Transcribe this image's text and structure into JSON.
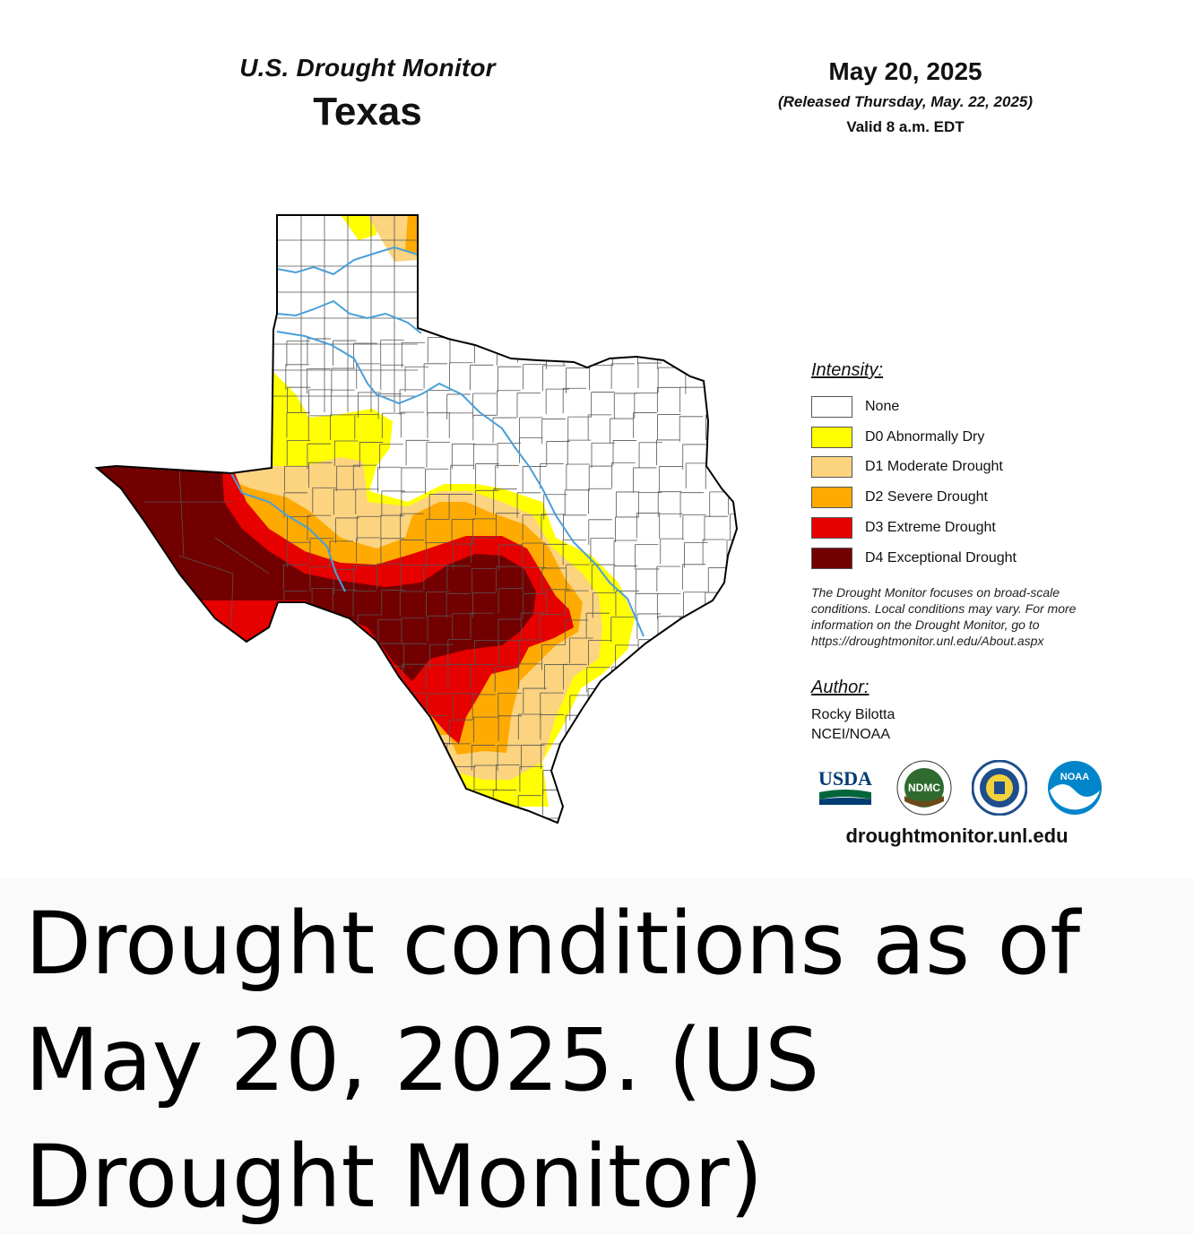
{
  "header": {
    "monitor_title": "U.S. Drought Monitor",
    "state": "Texas",
    "date": "May 20, 2025",
    "released": "(Released Thursday, May. 22, 2025)",
    "valid": "Valid 8 a.m. EDT"
  },
  "legend": {
    "heading": "Intensity:",
    "items": [
      {
        "label": "None",
        "color": "#ffffff"
      },
      {
        "label": "D0 Abnormally Dry",
        "color": "#ffff00"
      },
      {
        "label": "D1 Moderate Drought",
        "color": "#fcd37f"
      },
      {
        "label": "D2 Severe Drought",
        "color": "#ffaa00"
      },
      {
        "label": "D3 Extreme Drought",
        "color": "#e60000"
      },
      {
        "label": "D4 Exceptional Drought",
        "color": "#730000"
      }
    ]
  },
  "disclaimer": "The Drought Monitor focuses on broad-scale conditions. Local conditions may vary. For more information on the Drought Monitor, go to https://droughtmonitor.unl.edu/About.aspx",
  "author": {
    "heading": "Author:",
    "name": "Rocky Bilotta",
    "org": "NCEI/NOAA"
  },
  "logos": {
    "usda": "USDA",
    "ndmc": "NDMC",
    "noaa": "NOAA"
  },
  "site_url": "droughtmonitor.unl.edu",
  "caption": "Drought conditions as of May 20, 2025. (US Drought Monitor)",
  "colors": {
    "river": "#4a9fd8",
    "county_line": "#555555",
    "outline": "#000000"
  }
}
